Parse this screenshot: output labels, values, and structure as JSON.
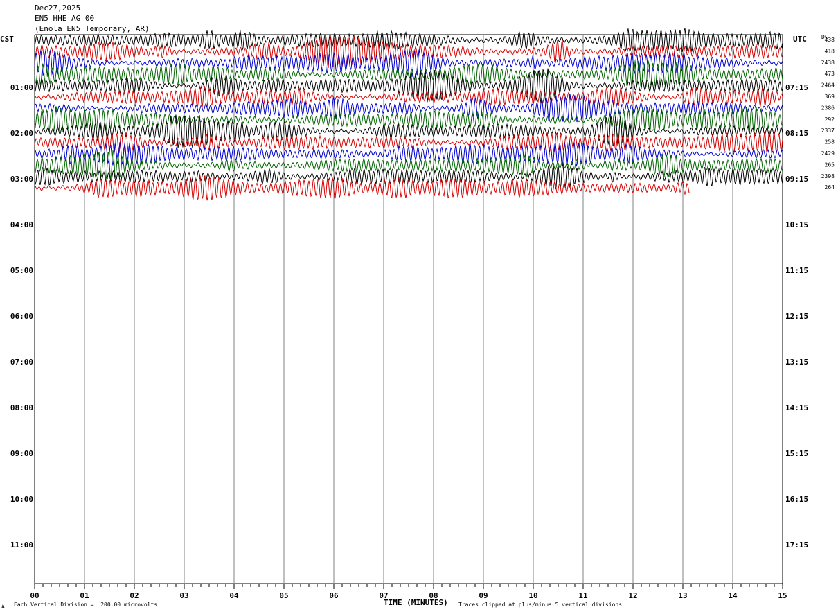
{
  "header": {
    "date": "Dec27,2025",
    "channel": "EN5 HHE AG 00",
    "station": "(Enola EN5 Temporary, AR)"
  },
  "left_tz": "CST",
  "right_tz": "UTC",
  "dc_label": "DC",
  "footer": {
    "scale_note": "Each Vertical Division =  200.00 microvolts",
    "clip_note": "Traces clipped at plus/minus 5 vertical divisions",
    "corner_mark": "A"
  },
  "chart_data": {
    "type": "line",
    "title": "",
    "xlabel": "TIME (MINUTES)",
    "ylabel": "",
    "xlim": [
      0,
      15
    ],
    "x_ticks": [
      "00",
      "01",
      "02",
      "03",
      "04",
      "05",
      "06",
      "07",
      "08",
      "09",
      "10",
      "11",
      "12",
      "13",
      "14",
      "15"
    ],
    "y_ticks_left": [
      "01:00",
      "02:00",
      "03:00",
      "04:00",
      "05:00",
      "06:00",
      "07:00",
      "08:00",
      "09:00",
      "10:00",
      "11:00"
    ],
    "y_ticks_right": [
      "07:15",
      "08:15",
      "09:15",
      "10:15",
      "11:15",
      "12:15",
      "13:15",
      "14:15",
      "15:15",
      "16:15",
      "17:15"
    ],
    "grid": true,
    "trace_colors": [
      "#000000",
      "#d40000",
      "#0000cc",
      "#006400"
    ],
    "dc_offsets": [
      "438",
      "418",
      "2438",
      "473",
      "2464",
      "369",
      "2386",
      "292",
      "2337",
      "258",
      "2429",
      "265",
      "2398",
      "264"
    ],
    "traces_recorded": 14,
    "last_trace_end_minute": 13.15
  }
}
